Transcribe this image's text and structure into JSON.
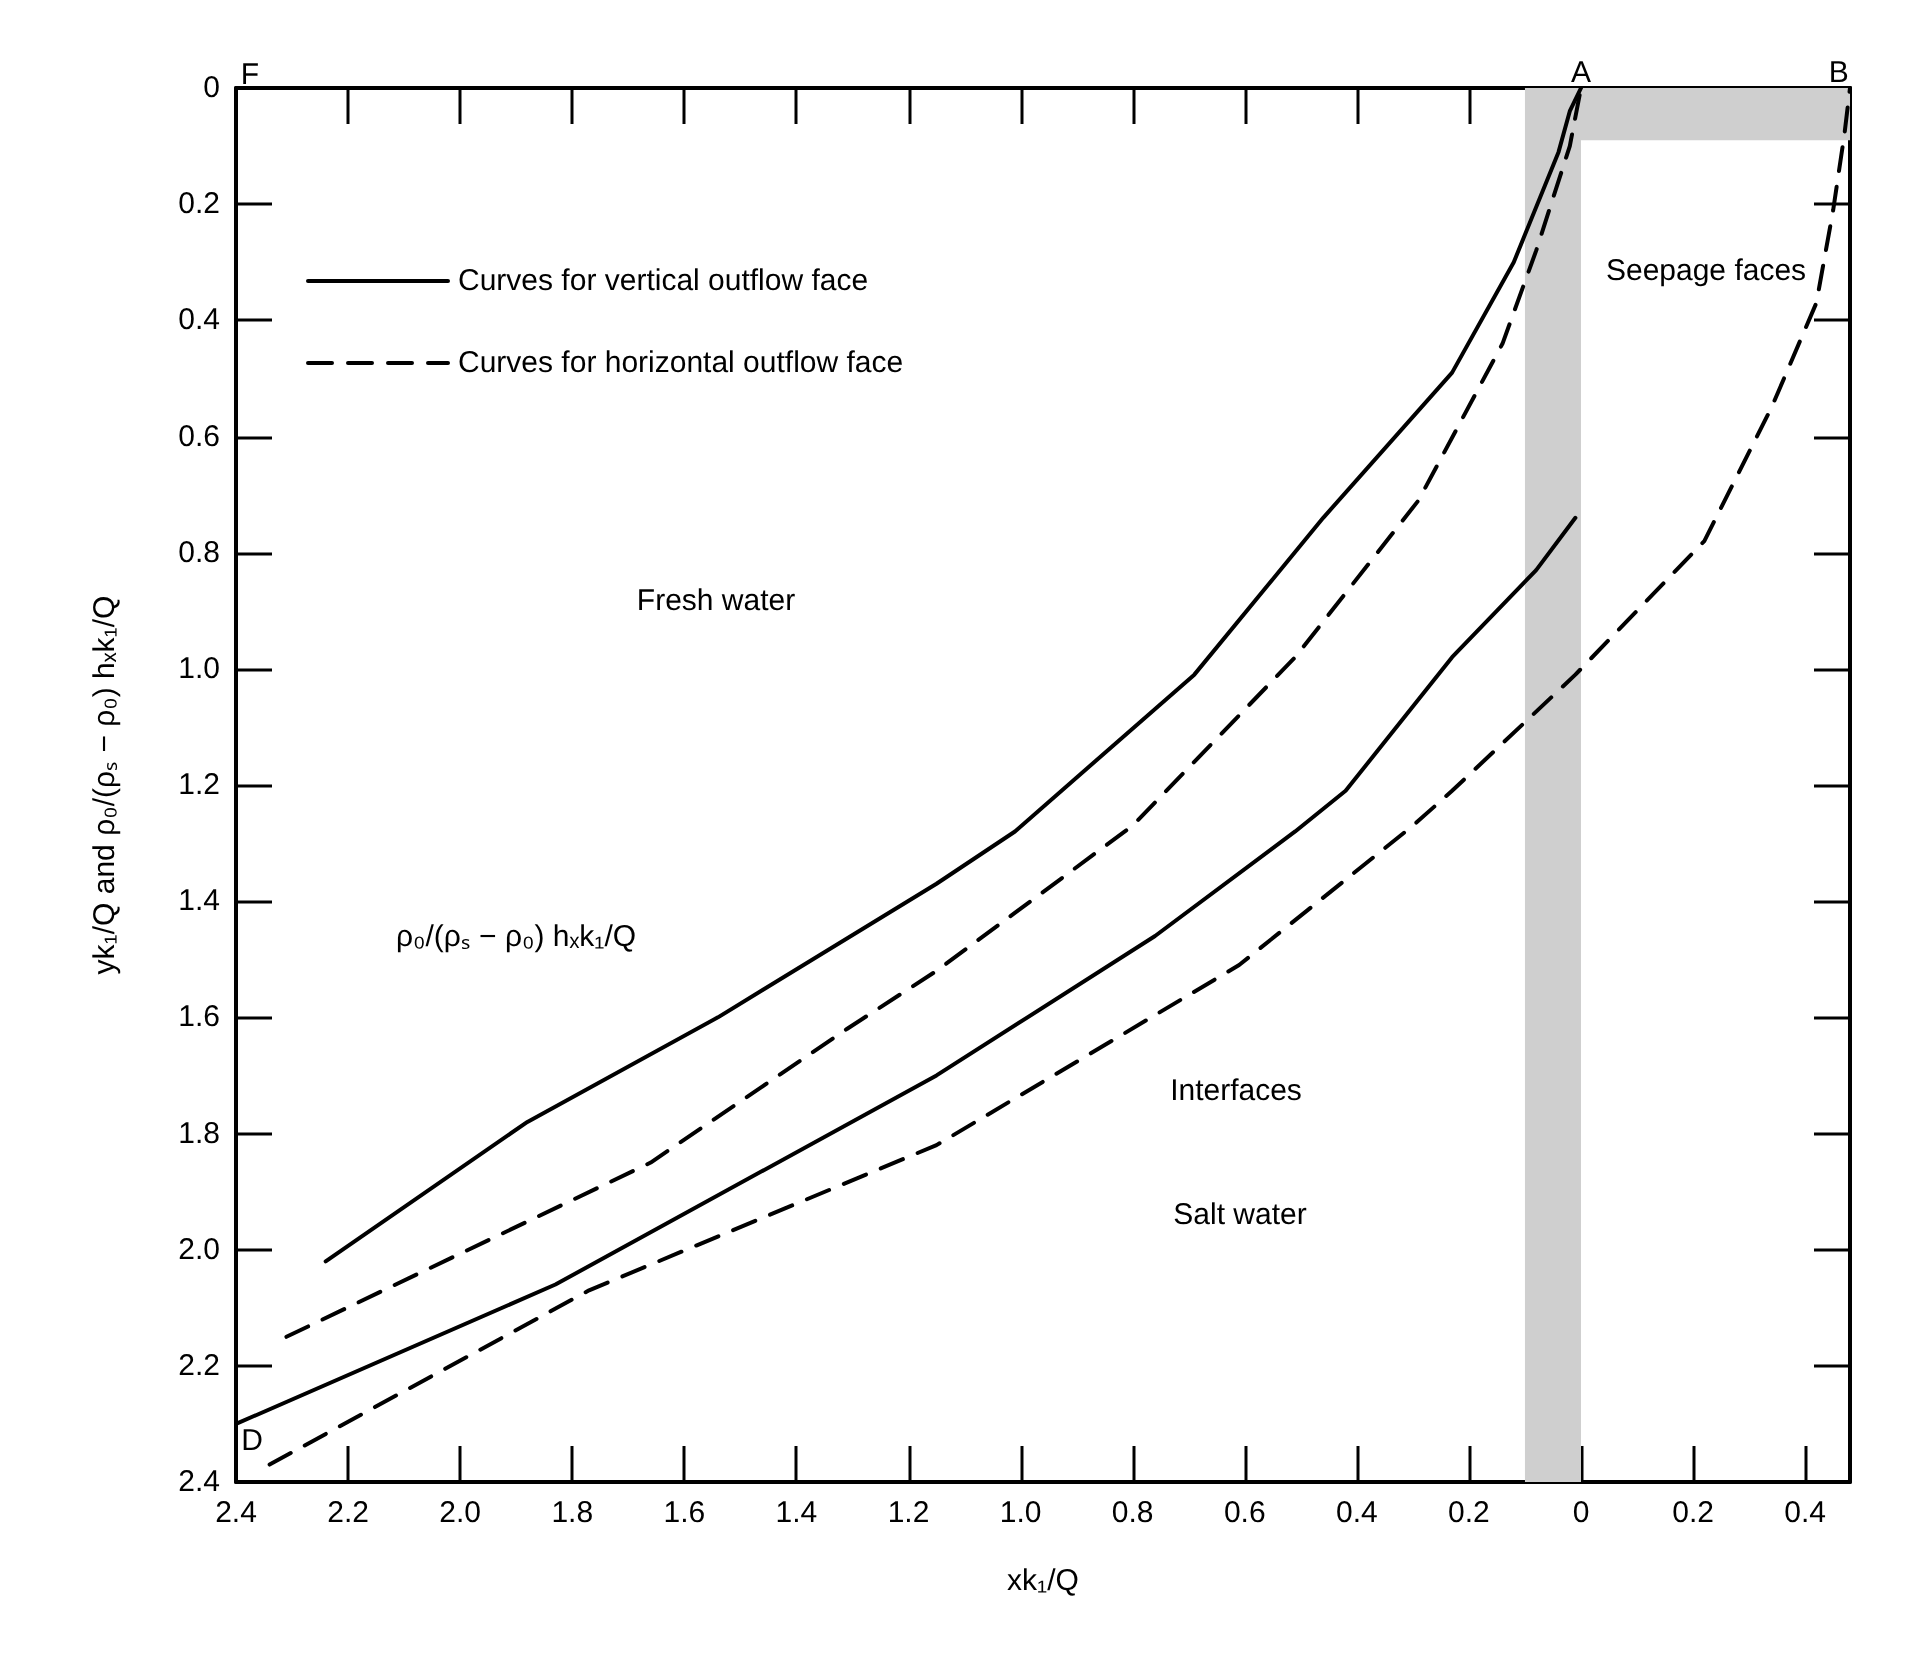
{
  "chart_data": {
    "type": "line",
    "xlabel": "xk₁/Q",
    "ylabel": "yk₁/Q and ρ₀/(ρₛ − ρ₀) hₓk₁/Q",
    "xlim": [
      -2.4,
      0.48
    ],
    "xticks": [
      {
        "value": -2.4,
        "label": "2.4"
      },
      {
        "value": -2.2,
        "label": "2.2"
      },
      {
        "value": -2.0,
        "label": "2.0"
      },
      {
        "value": -1.8,
        "label": "1.8"
      },
      {
        "value": -1.6,
        "label": "1.6"
      },
      {
        "value": -1.4,
        "label": "1.4"
      },
      {
        "value": -1.2,
        "label": "1.2"
      },
      {
        "value": -1.0,
        "label": "1.0"
      },
      {
        "value": -0.8,
        "label": "0.8"
      },
      {
        "value": -0.6,
        "label": "0.6"
      },
      {
        "value": -0.4,
        "label": "0.4"
      },
      {
        "value": -0.2,
        "label": "0.2"
      },
      0,
      0.2,
      0.4
    ],
    "ylim": [
      2.4,
      0
    ],
    "yticks": [
      0,
      0.2,
      0.4,
      0.6,
      0.8,
      {
        "value": 1.0,
        "label": "1.0"
      },
      1.2,
      1.4,
      1.6,
      1.8,
      {
        "value": 2.0,
        "label": "2.0"
      },
      2.2,
      2.4
    ],
    "grid": false,
    "legend": "top left",
    "marker": "none",
    "series": [
      {
        "name": "Curves for vertical outflow face",
        "color": "#000000",
        "line_style": "solid",
        "x": [
          -2.24,
          -1.88,
          -1.54,
          -1.15,
          -1.01,
          -0.69,
          -0.46,
          -0.23,
          -0.12,
          -0.04,
          -0.02,
          0
        ],
        "values": [
          2.02,
          1.78,
          1.6,
          1.37,
          1.28,
          1.01,
          0.74,
          0.49,
          0.3,
          0.11,
          0.04,
          0
        ]
      },
      {
        "name": "Curves for horizontal outflow face",
        "color": "#000000",
        "line_style": "dashed",
        "x": [
          -2.31,
          -1.66,
          -1.31,
          -1.15,
          -0.8,
          -0.51,
          -0.29,
          -0.14,
          -0.08,
          -0.02,
          0
        ],
        "values": [
          2.15,
          1.85,
          1.62,
          1.52,
          1.27,
          0.98,
          0.71,
          0.44,
          0.28,
          0.1,
          0
        ]
      },
      {
        "color": "#000000",
        "line_style": "solid",
        "x": [
          -2.4,
          -1.83,
          -1.15,
          -0.76,
          -0.51,
          -0.42,
          -0.23,
          -0.08,
          -0.01
        ],
        "values": [
          2.3,
          2.06,
          1.7,
          1.46,
          1.28,
          1.21,
          0.98,
          0.83,
          0.74
        ]
      },
      {
        "color": "#000000",
        "line_style": "dashed",
        "x": [
          -2.34,
          -1.77,
          -1.15,
          -0.61,
          -0.3,
          -0.23,
          -0.01,
          0.22,
          0.34,
          0.42,
          0.45,
          0.47,
          0.48
        ],
        "values": [
          2.37,
          2.07,
          1.82,
          1.51,
          1.27,
          1.21,
          1.01,
          0.78,
          0.55,
          0.37,
          0.21,
          0.08,
          0
        ]
      },
      {
        "type": "area",
        "color": "#cfcfcf",
        "x": [
          0,
          0.48
        ],
        "values": [
          0.09,
          0.09
        ]
      }
    ],
    "bands": [
      {
        "axis": "x",
        "from": -0.1,
        "to": 0,
        "label": null,
        "color": "#cfcfcf"
      }
    ],
    "annotations": [
      "Fresh water",
      "Salt water",
      "Interfaces",
      "ρ₀/(ρₛ − ρ₀) hₓk₁/Q",
      "Seepage faces",
      {
        "text": "A",
        "x": 0,
        "y": 0
      },
      {
        "text": "B",
        "x": 0.46,
        "y": 0
      },
      "D",
      "F"
    ]
  }
}
